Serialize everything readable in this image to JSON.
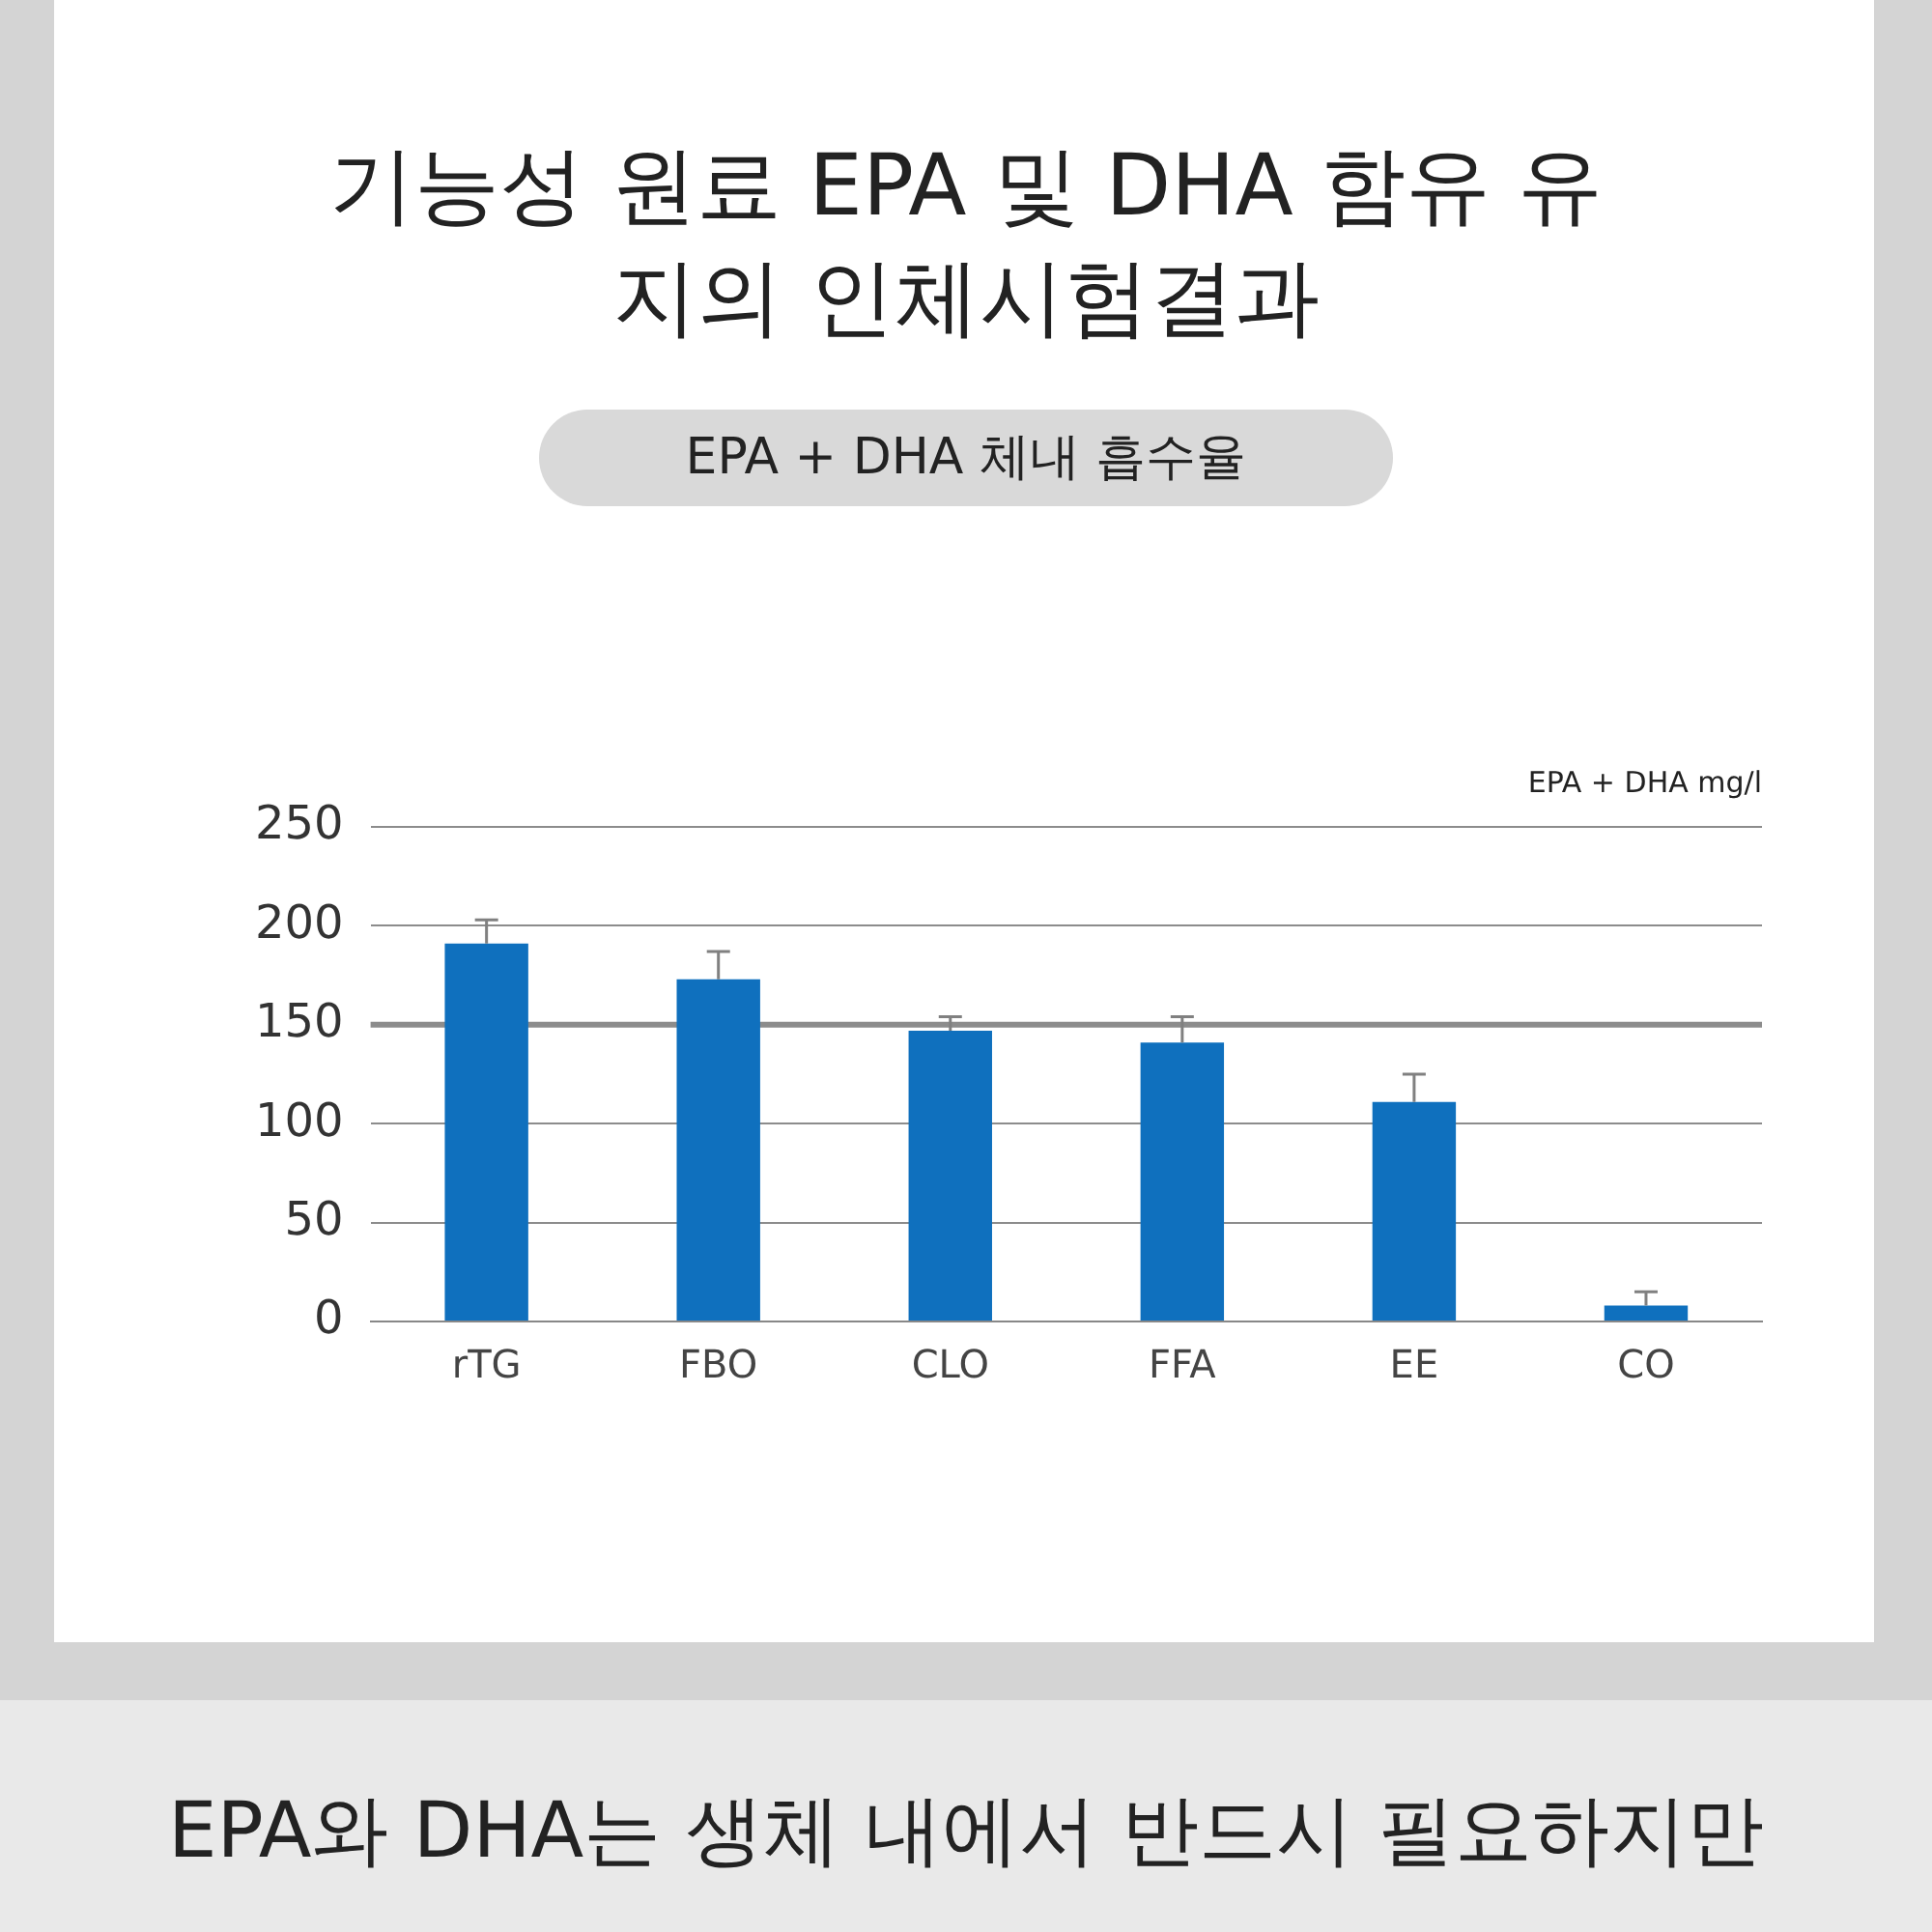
{
  "chart_data": {
    "type": "bar",
    "title": "기능성 원료 EPA 및 DHA 함유 유지의 인체시험결과",
    "subtitle": "EPA + DHA 체내 흡수율",
    "ylabel": "EPA + DHA  mg/l",
    "categories": [
      "rTG",
      "FBO",
      "CLO",
      "FFA",
      "EE",
      "CO"
    ],
    "values": [
      191,
      173,
      147,
      141,
      111,
      8
    ],
    "color": "#0f70be",
    "errors": [
      [
        191,
        203
      ],
      [
        173,
        187
      ],
      [
        147,
        154
      ],
      [
        141,
        154
      ],
      [
        111,
        125
      ],
      [
        8,
        15
      ]
    ],
    "ylim": [
      0,
      250
    ],
    "yticks": [
      0,
      50,
      100,
      150,
      200,
      250
    ],
    "grid": "y",
    "legend": false,
    "ref_lines": [
      {
        "axis": "y",
        "value": 150,
        "color": "#8c8c8c"
      }
    ],
    "annotations": [
      "EPA와 DHA는 생체 내에서 반드시 필요하지만"
    ]
  }
}
